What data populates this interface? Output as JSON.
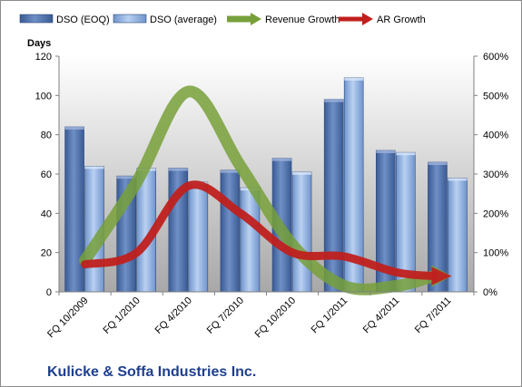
{
  "chart_data": {
    "type": "bar",
    "title": "Kulicke & Soffa Industries Inc.",
    "ylabel": "Days",
    "categories": [
      "FQ 10/2009",
      "FQ 1/2010",
      "FQ 4/2010",
      "FQ 7/2010",
      "FQ 10/2010",
      "FQ 1/2011",
      "FQ 4/2011",
      "FQ 7/2011"
    ],
    "ylim": [
      0,
      120
    ],
    "yticks": [
      "0",
      "20",
      "40",
      "60",
      "80",
      "100",
      "120"
    ],
    "y2lim": [
      0,
      600
    ],
    "y2ticks": [
      "0%",
      "100%",
      "200%",
      "300%",
      "400%",
      "500%",
      "600%"
    ],
    "legend_position": "top",
    "grid": false,
    "series": [
      {
        "name": "DSO (EOQ)",
        "kind": "bar",
        "axis": "left",
        "color": "#4f6fa8",
        "values": [
          84,
          59,
          63,
          62,
          68,
          98,
          72,
          66
        ]
      },
      {
        "name": "DSO (average)",
        "kind": "bar",
        "axis": "left",
        "color": "#8fb0e0",
        "values": [
          64,
          63,
          56,
          53,
          61,
          109,
          71,
          58
        ]
      },
      {
        "name": "Revenue Growth",
        "kind": "line",
        "axis": "right",
        "color": "#77a03a",
        "values": [
          80,
          280,
          510,
          320,
          120,
          15,
          15,
          40
        ]
      },
      {
        "name": "AR Growth",
        "kind": "line",
        "axis": "right",
        "color": "#c0201e",
        "values": [
          70,
          100,
          270,
          200,
          100,
          90,
          50,
          40
        ]
      }
    ]
  }
}
